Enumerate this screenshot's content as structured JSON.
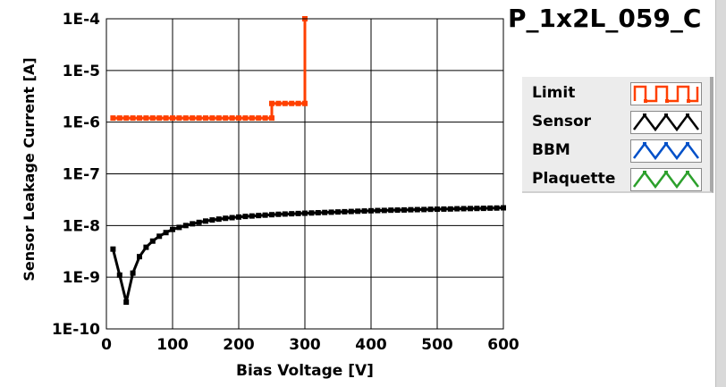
{
  "title": "P_1x2L_059_C",
  "legend": [
    {
      "label": "Limit",
      "color": "#ff4000",
      "icon": "square-wave-icon"
    },
    {
      "label": "Sensor",
      "color": "#000000",
      "icon": "triangle-wave-icon"
    },
    {
      "label": "BBM",
      "color": "#0050c8",
      "icon": "triangle-wave-icon"
    },
    {
      "label": "Plaquette",
      "color": "#2ca02c",
      "icon": "triangle-wave-icon"
    }
  ],
  "chart_data": {
    "type": "line",
    "xlabel": "Bias Voltage [V]",
    "ylabel": "Sensor Leakage Current [A]",
    "xlim": [
      0,
      600
    ],
    "ylim": [
      1e-10,
      0.0001
    ],
    "yscale": "log",
    "x_ticks": [
      0,
      100,
      200,
      300,
      400,
      500,
      600
    ],
    "y_tick_labels": [
      "1E-10",
      "1E-9",
      "1E-8",
      "1E-7",
      "1E-6",
      "1E-5",
      "1E-4"
    ],
    "grid": true,
    "series": [
      {
        "name": "Limit",
        "color": "#ff4000",
        "x": [
          10,
          20,
          30,
          40,
          50,
          60,
          70,
          80,
          90,
          100,
          110,
          120,
          130,
          140,
          150,
          160,
          170,
          180,
          190,
          200,
          210,
          220,
          230,
          240,
          250,
          250,
          260,
          270,
          280,
          290,
          300,
          300
        ],
        "y": [
          1.2e-06,
          1.2e-06,
          1.2e-06,
          1.2e-06,
          1.2e-06,
          1.2e-06,
          1.2e-06,
          1.2e-06,
          1.2e-06,
          1.2e-06,
          1.2e-06,
          1.2e-06,
          1.2e-06,
          1.2e-06,
          1.2e-06,
          1.2e-06,
          1.2e-06,
          1.2e-06,
          1.2e-06,
          1.2e-06,
          1.2e-06,
          1.2e-06,
          1.2e-06,
          1.2e-06,
          1.2e-06,
          2.3e-06,
          2.3e-06,
          2.3e-06,
          2.3e-06,
          2.3e-06,
          2.3e-06,
          0.0001
        ]
      },
      {
        "name": "Sensor",
        "color": "#000000",
        "x": [
          10,
          20,
          30,
          40,
          50,
          60,
          70,
          80,
          90,
          100,
          110,
          120,
          130,
          140,
          150,
          160,
          170,
          180,
          190,
          200,
          210,
          220,
          230,
          240,
          250,
          260,
          270,
          280,
          290,
          300,
          310,
          320,
          330,
          340,
          350,
          360,
          370,
          380,
          390,
          400,
          410,
          420,
          430,
          440,
          450,
          460,
          470,
          480,
          490,
          500,
          510,
          520,
          530,
          540,
          550,
          560,
          570,
          580,
          590,
          600
        ],
        "y": [
          3.5e-09,
          1.1e-09,
          3.3e-10,
          1.2e-09,
          2.5e-09,
          3.8e-09,
          5e-09,
          6.2e-09,
          7.3e-09,
          8.4e-09,
          9.2e-09,
          1e-08,
          1.08e-08,
          1.15e-08,
          1.22e-08,
          1.28e-08,
          1.33e-08,
          1.38e-08,
          1.42e-08,
          1.46e-08,
          1.5e-08,
          1.53e-08,
          1.56e-08,
          1.59e-08,
          1.62e-08,
          1.65e-08,
          1.67e-08,
          1.69e-08,
          1.71e-08,
          1.73e-08,
          1.75e-08,
          1.77e-08,
          1.79e-08,
          1.81e-08,
          1.83e-08,
          1.85e-08,
          1.87e-08,
          1.89e-08,
          1.91e-08,
          1.93e-08,
          1.95e-08,
          1.96e-08,
          1.98e-08,
          1.99e-08,
          2e-08,
          2.02e-08,
          2.03e-08,
          2.04e-08,
          2.06e-08,
          2.07e-08,
          2.08e-08,
          2.09e-08,
          2.11e-08,
          2.12e-08,
          2.13e-08,
          2.14e-08,
          2.15e-08,
          2.17e-08,
          2.18e-08,
          2.2e-08
        ]
      }
    ]
  }
}
